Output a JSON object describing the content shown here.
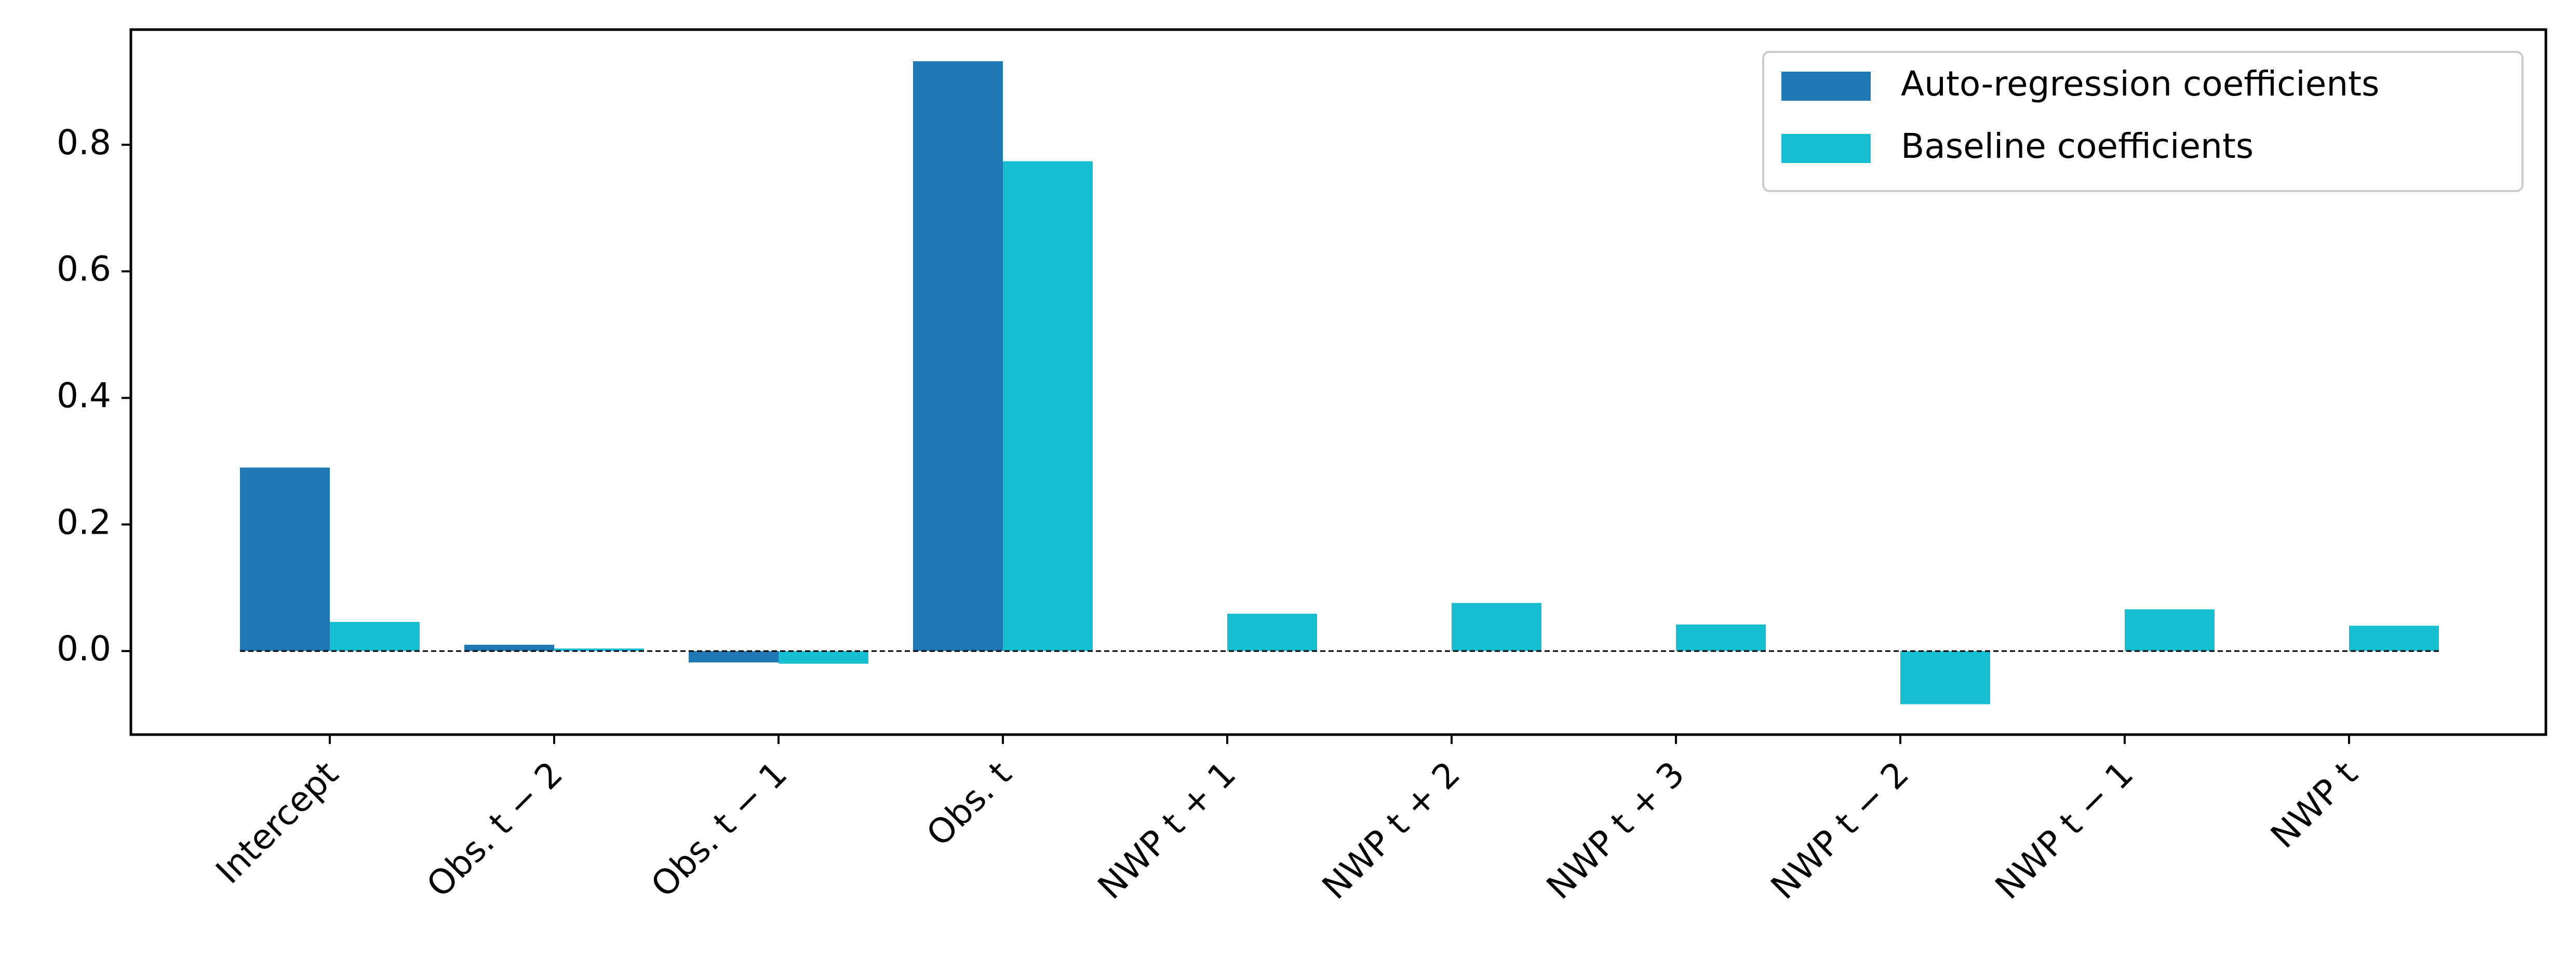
{
  "chart_data": {
    "type": "bar",
    "categories": [
      "Intercept",
      "Obs. t − 2",
      "Obs. t − 1",
      "Obs. t",
      "NWP t + 1",
      "NWP t + 2",
      "NWP t + 3",
      "NWP t − 2",
      "NWP t − 1",
      "NWP t"
    ],
    "series": [
      {
        "name": "Auto-regression coefficients",
        "color": "#1f77b4",
        "values": [
          0.29,
          0.01,
          -0.018,
          0.932,
          null,
          null,
          null,
          null,
          null,
          null
        ]
      },
      {
        "name": "Baseline coefficients",
        "color": "#17becf",
        "values": [
          0.046,
          0.004,
          -0.02,
          0.774,
          0.059,
          0.076,
          0.042,
          -0.084,
          0.066,
          0.04
        ]
      }
    ],
    "yticks": [
      "0.0",
      "0.2",
      "0.4",
      "0.6",
      "0.8"
    ],
    "ylim": [
      -0.132,
      0.982
    ],
    "zero_line": "dashed",
    "legend_position": "top-right",
    "grid": false,
    "title": "",
    "xlabel": "",
    "ylabel": ""
  }
}
